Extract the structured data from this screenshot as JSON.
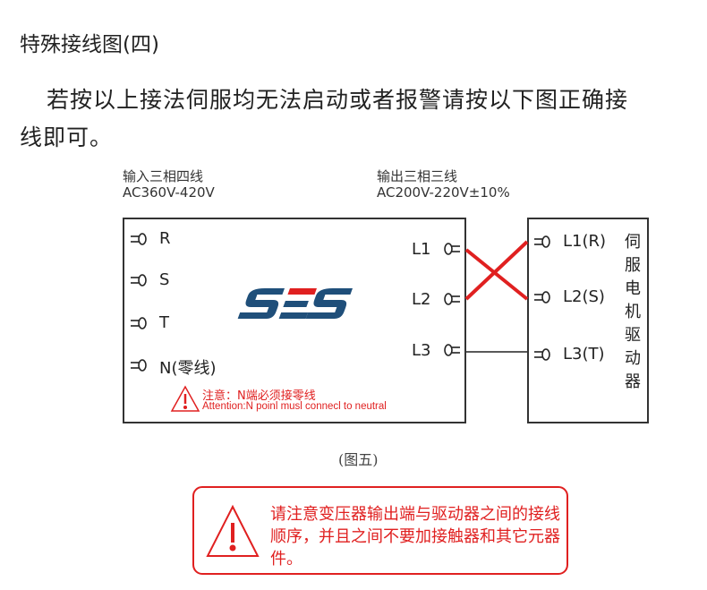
{
  "title": "特殊接线图(四)",
  "paragraph": [
    "若按以上接法伺服均无法启动或者报警请按以下图正确接",
    "线即可。"
  ],
  "input": {
    "label": "输入三相四线",
    "voltage": "AC360V-420V",
    "terminals": [
      "R",
      "S",
      "T",
      "N(零线)"
    ]
  },
  "output": {
    "label": "输出三相三线",
    "voltage": "AC200V-220V±10%",
    "terminals": [
      "L1",
      "L2",
      "L3"
    ]
  },
  "logo": "SES",
  "notice_cn": "注意：N端必须接零线",
  "notice_en": "Attention:N poinl musl connecl to neutral",
  "driver": {
    "terminals": [
      "L1(R)",
      "L2(S)",
      "L3(T)"
    ],
    "label": "伺服电机驱动器"
  },
  "caption": "(图五)",
  "warning": "请注意变压器输出端与驱动器之间的接线顺序，并且之间不要加接触器和其它元器件。",
  "colors": {
    "warning": "#e02020",
    "logo_blue": "#1f4f7a",
    "logo_red": "#e02020"
  }
}
